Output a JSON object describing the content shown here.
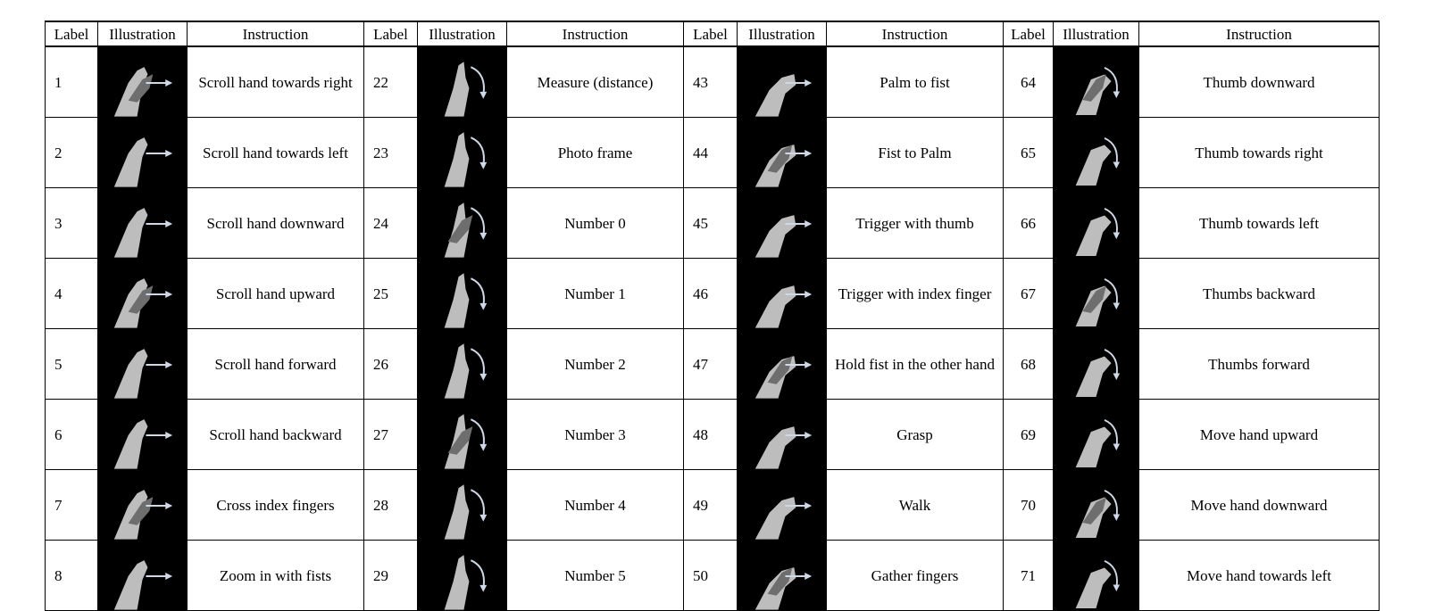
{
  "headers": [
    "Label",
    "Illustration",
    "Instruction",
    "Label",
    "Illustration",
    "Instruction",
    "Label",
    "Illustration",
    "Instruction",
    "Label",
    "Illustration",
    "Instruction"
  ],
  "rows": [
    [
      {
        "label": "1",
        "instruction": "Scroll hand towards right",
        "icon": "hand-scroll-right-icon"
      },
      {
        "label": "22",
        "instruction": "Measure (distance)",
        "icon": "hand-measure-icon"
      },
      {
        "label": "43",
        "instruction": "Palm to fist",
        "icon": "hand-palm-to-fist-icon"
      },
      {
        "label": "64",
        "instruction": "Thumb downward",
        "icon": "hand-thumb-down-icon"
      }
    ],
    [
      {
        "label": "2",
        "instruction": "Scroll hand towards left",
        "icon": "hand-scroll-left-icon"
      },
      {
        "label": "23",
        "instruction": "Photo frame",
        "icon": "hand-photo-frame-icon"
      },
      {
        "label": "44",
        "instruction": "Fist to Palm",
        "icon": "hand-fist-to-palm-icon"
      },
      {
        "label": "65",
        "instruction": "Thumb towards right",
        "icon": "hand-thumb-right-icon"
      }
    ],
    [
      {
        "label": "3",
        "instruction": "Scroll hand downward",
        "icon": "hand-scroll-down-icon"
      },
      {
        "label": "24",
        "instruction": "Number 0",
        "icon": "hand-number-0-icon"
      },
      {
        "label": "45",
        "instruction": "Trigger with thumb",
        "icon": "hand-trigger-thumb-icon"
      },
      {
        "label": "66",
        "instruction": "Thumb towards left",
        "icon": "hand-thumb-left-icon"
      }
    ],
    [
      {
        "label": "4",
        "instruction": "Scroll hand upward",
        "icon": "hand-scroll-up-icon"
      },
      {
        "label": "25",
        "instruction": "Number 1",
        "icon": "hand-number-1-icon"
      },
      {
        "label": "46",
        "instruction": "Trigger with index finger",
        "icon": "hand-trigger-index-icon"
      },
      {
        "label": "67",
        "instruction": "Thumbs backward",
        "icon": "hand-thumbs-backward-icon"
      }
    ],
    [
      {
        "label": "5",
        "instruction": "Scroll hand forward",
        "icon": "hand-scroll-forward-icon"
      },
      {
        "label": "26",
        "instruction": "Number 2",
        "icon": "hand-number-2-icon"
      },
      {
        "label": "47",
        "instruction": "Hold fist in the other hand",
        "icon": "hand-hold-fist-icon"
      },
      {
        "label": "68",
        "instruction": "Thumbs forward",
        "icon": "hand-thumbs-forward-icon"
      }
    ],
    [
      {
        "label": "6",
        "instruction": "Scroll hand backward",
        "icon": "hand-scroll-backward-icon"
      },
      {
        "label": "27",
        "instruction": "Number 3",
        "icon": "hand-number-3-icon"
      },
      {
        "label": "48",
        "instruction": "Grasp",
        "icon": "hand-grasp-icon"
      },
      {
        "label": "69",
        "instruction": "Move hand upward",
        "icon": "hand-move-up-icon"
      }
    ],
    [
      {
        "label": "7",
        "instruction": "Cross index fingers",
        "icon": "hand-cross-fingers-icon"
      },
      {
        "label": "28",
        "instruction": "Number 4",
        "icon": "hand-number-4-icon"
      },
      {
        "label": "49",
        "instruction": "Walk",
        "icon": "hand-walk-icon"
      },
      {
        "label": "70",
        "instruction": "Move hand downward",
        "icon": "hand-move-down-icon"
      }
    ],
    [
      {
        "label": "8",
        "instruction": "Zoom in with fists",
        "icon": "hand-zoom-in-fists-icon"
      },
      {
        "label": "29",
        "instruction": "Number 5",
        "icon": "hand-number-5-icon"
      },
      {
        "label": "50",
        "instruction": "Gather fingers",
        "icon": "hand-gather-fingers-icon"
      },
      {
        "label": "71",
        "instruction": "Move hand towards left",
        "icon": "hand-move-left-icon"
      }
    ]
  ],
  "colors": {
    "illustration_bg": "#000000",
    "hand": "#bdbdbd",
    "hand_shadow": "#6e6e6e",
    "arrow": "#cfd8e6",
    "border": "#000000"
  }
}
